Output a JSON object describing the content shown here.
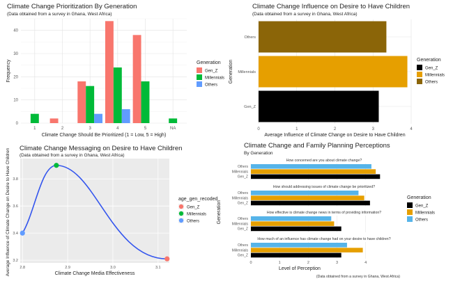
{
  "chart_data": [
    {
      "type": "bar",
      "title": "Climate Change Prioritization By Generation",
      "subtitle": "(Data obtained from a survey in Ghana, West Africa)",
      "xlabel": "Climate Change Should Be Prioritized (1 = Low, 5 = High)",
      "ylabel": "Frequency",
      "categories": [
        "1",
        "2",
        "3",
        "4",
        "5",
        "NA"
      ],
      "ylim": [
        0,
        45
      ],
      "yticks": [
        0,
        10,
        20,
        30,
        40
      ],
      "legend_title": "Generation",
      "legend_position": "right",
      "grid": true,
      "series": [
        {
          "name": "Gen_Z",
          "color": "#F8766D",
          "values": [
            0,
            2,
            18,
            44,
            38,
            0
          ]
        },
        {
          "name": "Millennials",
          "color": "#00BA38",
          "values": [
            4,
            0,
            16,
            24,
            18,
            2
          ]
        },
        {
          "name": "Others",
          "color": "#619CFF",
          "values": [
            0,
            0,
            4,
            6,
            0,
            0
          ]
        }
      ]
    },
    {
      "type": "bar",
      "orientation": "horizontal",
      "title": "Climate Change Influence on Desire to Have Children",
      "subtitle": "(Data obtained from a survey in Ghana, West Africa)",
      "xlabel": "Average Influence of Climate Change on Desire to Have Children",
      "ylabel": "Generation",
      "categories": [
        "Gen_Z",
        "Millennials",
        "Others"
      ],
      "values": [
        3.15,
        3.9,
        3.35
      ],
      "colors": [
        "#000000",
        "#E69F00",
        "#8B6508"
      ],
      "xlim": [
        0,
        4
      ],
      "xticks": [
        0,
        1,
        2,
        3,
        4
      ],
      "legend_title": "Generation",
      "legend_position": "right",
      "legend_items": [
        {
          "name": "Gen_Z",
          "color": "#000000"
        },
        {
          "name": "Millennials",
          "color": "#E69F00"
        },
        {
          "name": "Others",
          "color": "#8B6508"
        }
      ]
    },
    {
      "type": "line",
      "title": "Climate Change Messaging on Desire to Have Children",
      "subtitle": "(Data obtained from a survey in Ghana, West Africa)",
      "xlabel": "Climate Change Media Effectiveness",
      "ylabel": "Average Influence of Climate Change on Desire to Have Children",
      "xlim": [
        2.795,
        3.125
      ],
      "ylim": [
        3.18,
        3.95
      ],
      "xticks": [
        2.8,
        2.9,
        3.0,
        3.1
      ],
      "yticks": [
        3.2,
        3.4,
        3.6,
        3.8
      ],
      "line_color": "#3355EE",
      "background": "#EBEBEB",
      "legend_title": "age_gen_recoded",
      "legend_position": "right",
      "points": [
        {
          "name": "Gen_Z",
          "x": 3.12,
          "y": 3.21,
          "color": "#F8766D"
        },
        {
          "name": "Millennials",
          "x": 2.875,
          "y": 3.9,
          "color": "#00BA38"
        },
        {
          "name": "Others",
          "x": 2.8,
          "y": 3.4,
          "color": "#619CFF"
        }
      ]
    },
    {
      "type": "bar",
      "orientation": "horizontal",
      "title": "Climate Change and Family Planning Perceptions",
      "subtitle": "By Generation",
      "xlabel": "Level of Perception",
      "ylabel": "Generation",
      "caption": "(Data obtained from a survey in Ghana, West Africa)",
      "xlim": [
        0,
        5.1
      ],
      "xticks": [
        0,
        1,
        2,
        3,
        4
      ],
      "legend_title": "Generation",
      "legend_position": "right",
      "series_colors": {
        "Gen_Z": "#000000",
        "Millennials": "#E69F00",
        "Others": "#56B4E9"
      },
      "panels": [
        {
          "question": "How concerned are you about climate change?",
          "values": {
            "Others": 4.2,
            "Millennials": 4.35,
            "Gen_Z": 4.5
          }
        },
        {
          "question": "How should addressing issues of climate change be prioritized?",
          "values": {
            "Others": 3.75,
            "Millennials": 3.95,
            "Gen_Z": 4.15
          }
        },
        {
          "question": "How effective is climate change news in terms of providing information?",
          "values": {
            "Others": 2.8,
            "Millennials": 2.9,
            "Gen_Z": 3.15
          }
        },
        {
          "question": "How much of an influence has climate change had on your desire to have children?",
          "values": {
            "Others": 3.35,
            "Millennials": 3.9,
            "Gen_Z": 3.15
          }
        }
      ]
    }
  ]
}
